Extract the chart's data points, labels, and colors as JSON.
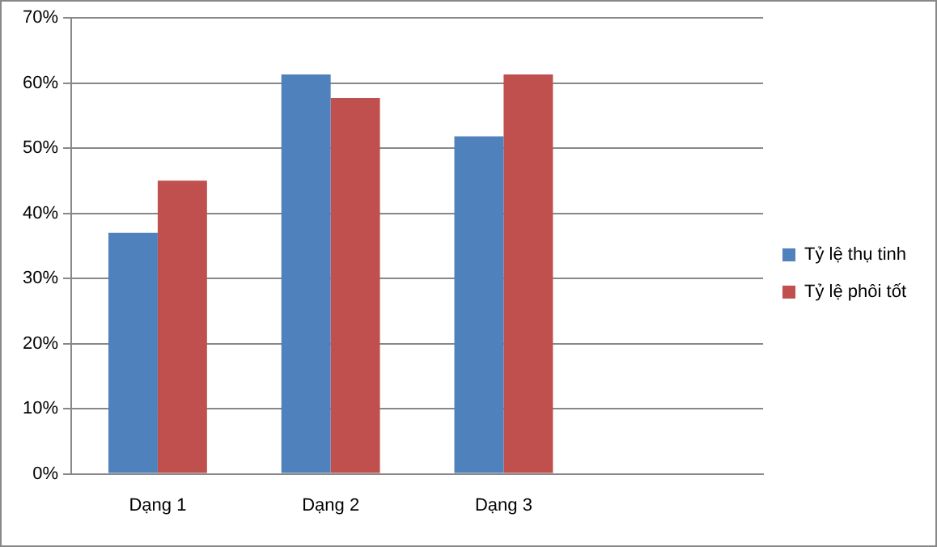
{
  "chart_data": {
    "type": "bar",
    "categories": [
      "Dạng 1",
      "Dạng 2",
      "Dạng 3",
      null
    ],
    "series": [
      {
        "name": "Tỷ lệ thụ tinh",
        "color": "#4f81bd",
        "values": [
          37,
          61.3,
          51.8,
          null
        ]
      },
      {
        "name": "Tỷ lệ phôi tốt",
        "color": "#c0504d",
        "values": [
          45,
          57.7,
          61.3,
          null
        ]
      }
    ],
    "ylim": [
      0,
      70
    ],
    "yticks": [
      {
        "value": 0,
        "label": "0%"
      },
      {
        "value": 10,
        "label": "10%"
      },
      {
        "value": 20,
        "label": "20%"
      },
      {
        "value": 30,
        "label": "30%"
      },
      {
        "value": 40,
        "label": "40%"
      },
      {
        "value": 50,
        "label": "50%"
      },
      {
        "value": 60,
        "label": "60%"
      },
      {
        "value": 70,
        "label": "70%"
      }
    ],
    "grid": "y",
    "legend": "right"
  }
}
